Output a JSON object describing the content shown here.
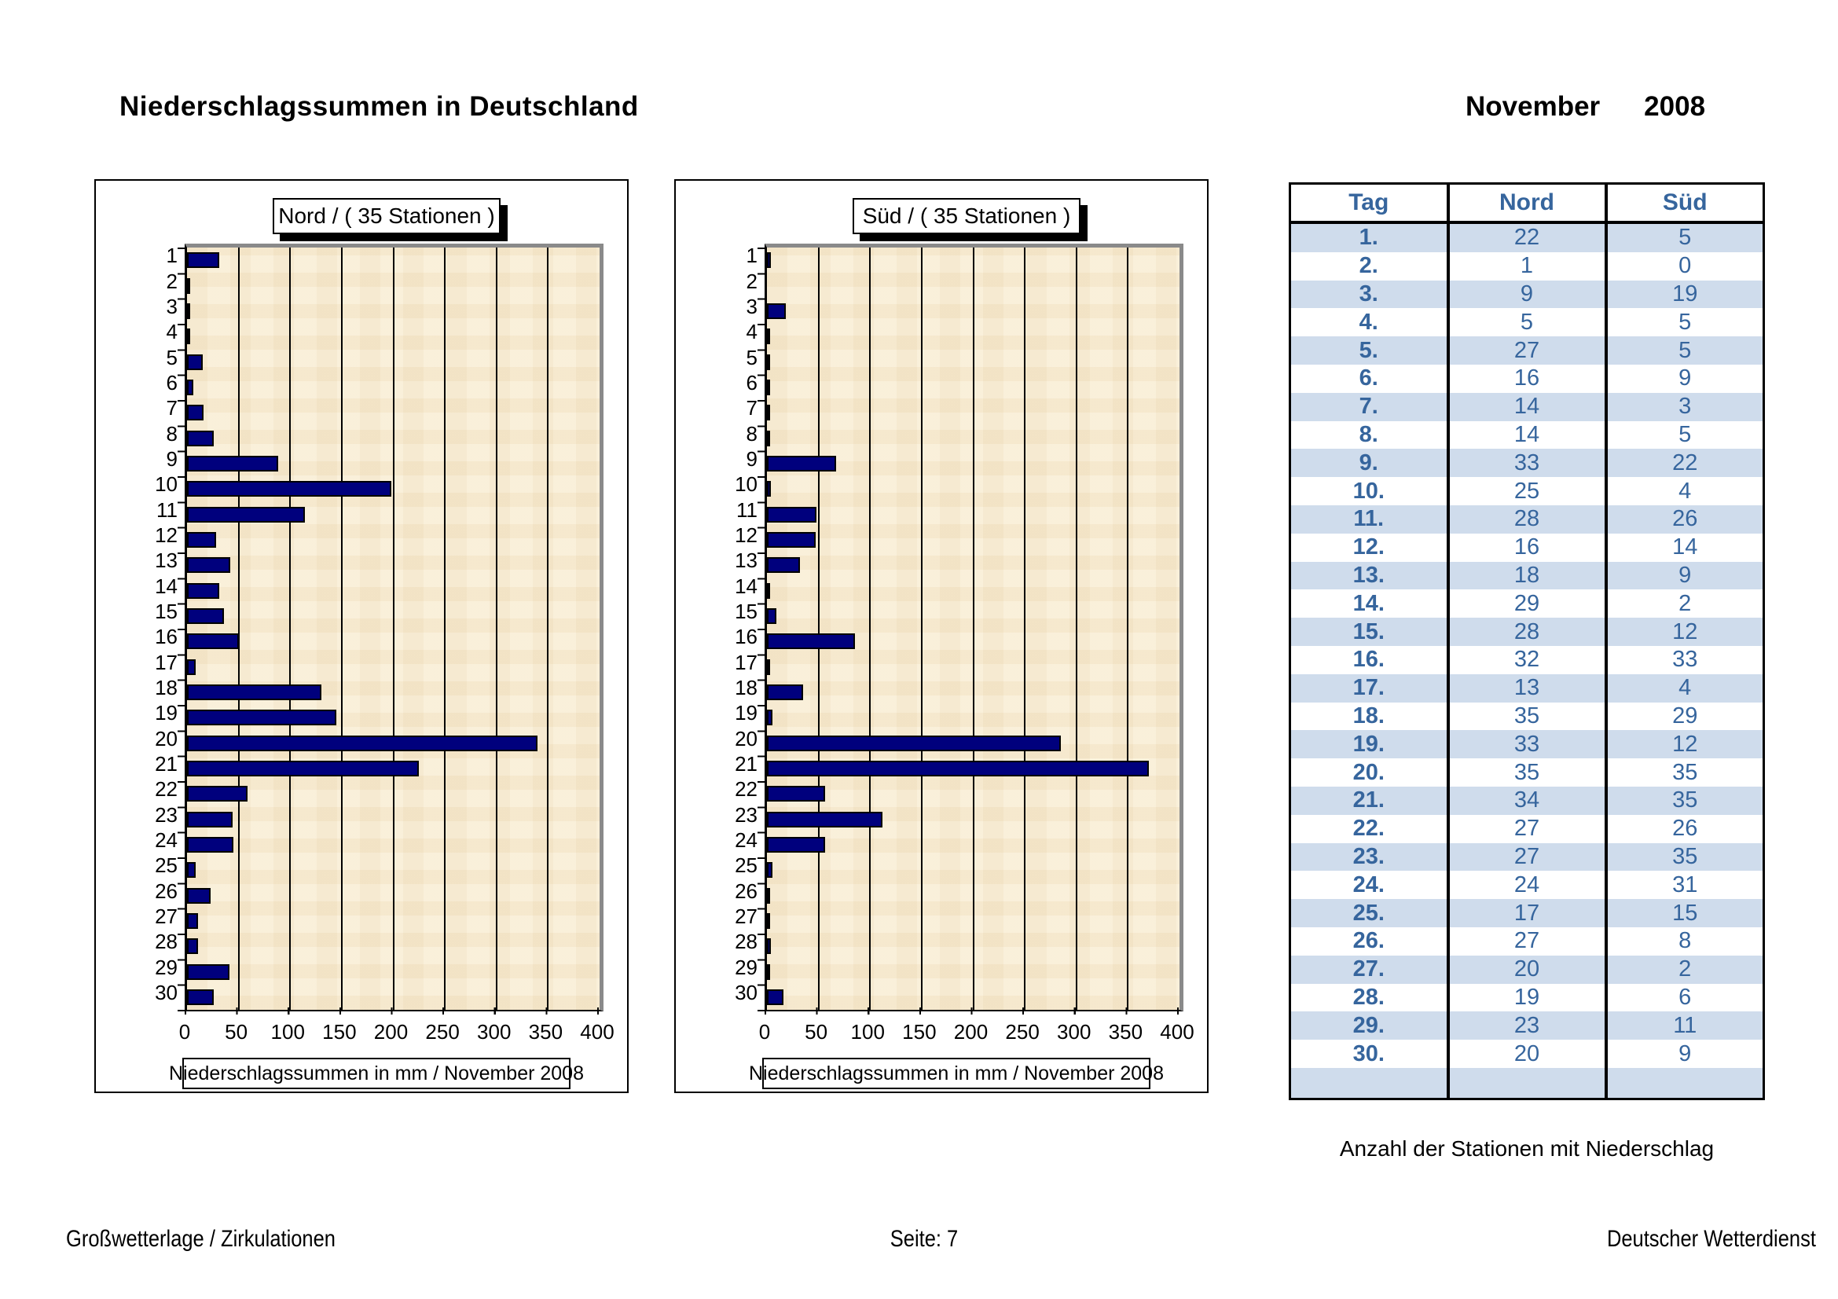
{
  "page": {
    "title": "Niederschlagssummen in Deutschland",
    "month": "November",
    "year": "2008",
    "footer_left": "Großwetterlage / Zirkulationen",
    "footer_center": "Seite: 7",
    "footer_right": "Deutscher Wetterdienst"
  },
  "colors": {
    "bar": "#00007d",
    "plot_background": "#f8ecd2",
    "table_band": "#cfdcec",
    "table_text": "#36659d"
  },
  "table": {
    "caption": "Anzahl der Stationen mit Niederschlag",
    "columns": [
      "Tag",
      "Nord",
      "Süd"
    ],
    "rows": [
      [
        "1.",
        22,
        5
      ],
      [
        "2.",
        1,
        0
      ],
      [
        "3.",
        9,
        19
      ],
      [
        "4.",
        5,
        5
      ],
      [
        "5.",
        27,
        5
      ],
      [
        "6.",
        16,
        9
      ],
      [
        "7.",
        14,
        3
      ],
      [
        "8.",
        14,
        5
      ],
      [
        "9.",
        33,
        22
      ],
      [
        "10.",
        25,
        4
      ],
      [
        "11.",
        28,
        26
      ],
      [
        "12.",
        16,
        14
      ],
      [
        "13.",
        18,
        9
      ],
      [
        "14.",
        29,
        2
      ],
      [
        "15.",
        28,
        12
      ],
      [
        "16.",
        32,
        33
      ],
      [
        "17.",
        13,
        4
      ],
      [
        "18.",
        35,
        29
      ],
      [
        "19.",
        33,
        12
      ],
      [
        "20.",
        35,
        35
      ],
      [
        "21.",
        34,
        35
      ],
      [
        "22.",
        27,
        26
      ],
      [
        "23.",
        27,
        35
      ],
      [
        "24.",
        24,
        31
      ],
      [
        "25.",
        17,
        15
      ],
      [
        "26.",
        27,
        8
      ],
      [
        "27.",
        20,
        2
      ],
      [
        "28.",
        19,
        6
      ],
      [
        "29.",
        23,
        11
      ],
      [
        "30.",
        20,
        9
      ]
    ]
  },
  "chart_data": [
    {
      "type": "bar",
      "orientation": "horizontal",
      "title": "Nord  /  ( 35 Stationen )",
      "xlabel": "Niederschlagssummen in mm / November 2008",
      "categories": [
        "1",
        "2",
        "3",
        "4",
        "5",
        "6",
        "7",
        "8",
        "9",
        "10",
        "11",
        "12",
        "13",
        "14",
        "15",
        "16",
        "17",
        "18",
        "19",
        "20",
        "21",
        "22",
        "23",
        "24",
        "25",
        "26",
        "27",
        "28",
        "29",
        "30"
      ],
      "values": [
        31,
        1,
        3,
        3,
        15,
        6,
        16,
        26,
        88,
        198,
        114,
        28,
        42,
        31,
        36,
        50,
        8,
        130,
        145,
        340,
        225,
        59,
        44,
        45,
        8,
        23,
        11,
        11,
        41,
        26
      ],
      "xlim": [
        0,
        400
      ],
      "xticks": [
        0,
        50,
        100,
        150,
        200,
        250,
        300,
        350,
        400
      ],
      "grid": true,
      "legend": false
    },
    {
      "type": "bar",
      "orientation": "horizontal",
      "title": "Süd  /  ( 35 Stationen )",
      "xlabel": "Niederschlagssummen in mm / November 2008",
      "categories": [
        "1",
        "2",
        "3",
        "4",
        "5",
        "6",
        "7",
        "8",
        "9",
        "10",
        "11",
        "12",
        "13",
        "14",
        "15",
        "16",
        "17",
        "18",
        "19",
        "20",
        "21",
        "22",
        "23",
        "24",
        "25",
        "26",
        "27",
        "28",
        "29",
        "30"
      ],
      "values": [
        4,
        0,
        18,
        3,
        2,
        3,
        3,
        3,
        67,
        4,
        48,
        47,
        32,
        1,
        9,
        85,
        3,
        35,
        5,
        285,
        370,
        56,
        112,
        56,
        5,
        3,
        2,
        4,
        3,
        16
      ],
      "xlim": [
        0,
        400
      ],
      "xticks": [
        0,
        50,
        100,
        150,
        200,
        250,
        300,
        350,
        400
      ],
      "grid": true,
      "legend": false
    }
  ]
}
